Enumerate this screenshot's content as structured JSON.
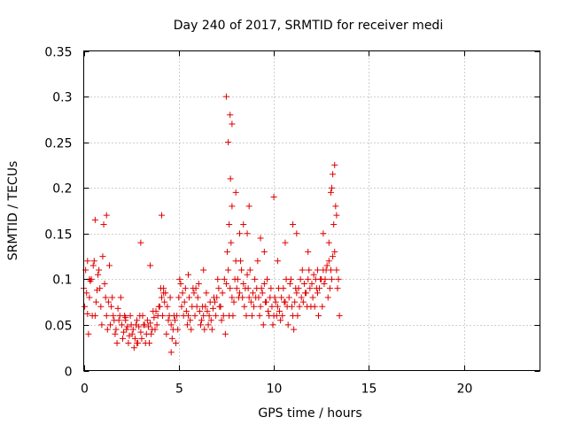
{
  "chart_data": {
    "type": "scatter",
    "title": "Day 240 of 2017, SRMTID for receiver medi",
    "xlabel": "GPS time / hours",
    "ylabel": "SRMTID / TECUs",
    "xlim": [
      0,
      24
    ],
    "ylim": [
      0,
      0.35
    ],
    "xticks": [
      0,
      5,
      10,
      15,
      20
    ],
    "xtick_labels": [
      "0",
      "5",
      "10",
      "15",
      "20"
    ],
    "yticks": [
      0,
      0.05,
      0.1,
      0.15,
      0.2,
      0.25,
      0.3,
      0.35
    ],
    "ytick_labels": [
      "0",
      "0.05",
      "0.1",
      "0.15",
      "0.2",
      "0.25",
      "0.3",
      "0.35"
    ],
    "grid": true,
    "marker": "+",
    "series_color": "#e00000",
    "series": [
      {
        "name": "SRMTID",
        "x": [
          0.0,
          0.1,
          0.2,
          0.3,
          0.4,
          0.5,
          0.6,
          0.7,
          0.8,
          0.9,
          1.0,
          1.1,
          1.2,
          1.3,
          1.4,
          1.5,
          1.6,
          1.7,
          1.8,
          1.9,
          2.0,
          2.1,
          2.2,
          2.3,
          2.4,
          2.5,
          2.6,
          2.7,
          2.8,
          2.9,
          3.0,
          3.1,
          3.2,
          3.3,
          3.4,
          3.5,
          3.6,
          3.7,
          3.8,
          3.9,
          4.0,
          4.1,
          4.2,
          4.3,
          4.4,
          4.5,
          4.6,
          4.7,
          4.8,
          4.9,
          5.0,
          5.1,
          5.2,
          5.3,
          5.4,
          5.5,
          5.6,
          5.7,
          5.8,
          5.9,
          6.0,
          6.1,
          6.2,
          6.3,
          6.4,
          6.5,
          6.6,
          6.7,
          6.8,
          6.9,
          7.0,
          7.1,
          7.2,
          7.3,
          7.4,
          7.5,
          7.6,
          7.7,
          7.8,
          7.9,
          8.0,
          8.1,
          8.2,
          8.3,
          8.4,
          8.5,
          8.6,
          8.7,
          8.8,
          8.9,
          9.0,
          9.1,
          9.2,
          9.3,
          9.4,
          9.5,
          9.6,
          9.7,
          9.8,
          9.9,
          10.0,
          10.1,
          10.2,
          10.3,
          10.4,
          10.5,
          10.6,
          10.7,
          10.8,
          10.9,
          11.0,
          11.1,
          11.2,
          11.3,
          11.4,
          11.5,
          11.6,
          11.7,
          11.8,
          11.9,
          12.0,
          12.1,
          12.2,
          12.3,
          12.4,
          12.5,
          12.6,
          12.7,
          12.8,
          12.9,
          13.0,
          13.1,
          13.2,
          13.3,
          13.4,
          0.05,
          0.15,
          0.25,
          0.35,
          0.45,
          0.55,
          0.65,
          0.75,
          0.85,
          0.95,
          1.05,
          1.15,
          1.25,
          1.35,
          1.45,
          1.55,
          1.65,
          1.75,
          1.85,
          1.95,
          2.05,
          2.15,
          2.25,
          2.35,
          2.45,
          2.55,
          2.65,
          2.75,
          2.85,
          2.95,
          3.05,
          3.15,
          3.25,
          3.35,
          3.45,
          3.55,
          3.65,
          3.75,
          3.85,
          3.95,
          4.05,
          4.15,
          4.25,
          4.35,
          4.45,
          4.55,
          4.65,
          4.75,
          4.85,
          4.95,
          5.05,
          5.15,
          5.25,
          5.35,
          5.45,
          5.55,
          5.65,
          5.75,
          5.85,
          5.95,
          6.05,
          6.15,
          6.25,
          6.35,
          6.45,
          6.55,
          6.65,
          6.75,
          6.85,
          6.95,
          7.05,
          7.15,
          7.25,
          7.35,
          7.45,
          7.55,
          7.65,
          7.75,
          7.85,
          7.95,
          8.05,
          8.15,
          8.25,
          8.35,
          8.45,
          8.55,
          8.65,
          8.75,
          8.85,
          8.95,
          9.05,
          9.15,
          9.25,
          9.35,
          9.45,
          9.55,
          9.65,
          9.75,
          9.85,
          9.95,
          10.05,
          10.15,
          10.25,
          10.35,
          10.45,
          10.55,
          10.65,
          10.75,
          10.85,
          10.95,
          11.05,
          11.15,
          11.25,
          11.35,
          11.45,
          11.55,
          11.65,
          11.75,
          11.85,
          11.95,
          12.05,
          12.15,
          12.25,
          12.35,
          12.45,
          12.55,
          12.65,
          12.75,
          12.85,
          12.95,
          13.05,
          13.15,
          13.25,
          13.35,
          13.45,
          0.2,
          0.6,
          1.2,
          2.2,
          3.0,
          4.1,
          4.2,
          4.6,
          7.5,
          7.6,
          7.7,
          7.8,
          8.0,
          8.4,
          8.7,
          9.3,
          10.0,
          10.6,
          11.2,
          12.6,
          13.0,
          13.1,
          13.2,
          13.3,
          0.3,
          2.8,
          3.5,
          5.5,
          6.3,
          7.65,
          7.72,
          7.8,
          8.2,
          8.6,
          9.5,
          10.2,
          11.0,
          11.8,
          12.3,
          12.9,
          13.05
        ],
        "y": [
          0.09,
          0.11,
          0.062,
          0.08,
          0.1,
          0.115,
          0.06,
          0.088,
          0.11,
          0.07,
          0.125,
          0.095,
          0.06,
          0.075,
          0.05,
          0.08,
          0.055,
          0.045,
          0.068,
          0.06,
          0.05,
          0.042,
          0.058,
          0.048,
          0.038,
          0.05,
          0.045,
          0.035,
          0.055,
          0.048,
          0.042,
          0.06,
          0.05,
          0.04,
          0.048,
          0.052,
          0.045,
          0.058,
          0.065,
          0.06,
          0.07,
          0.08,
          0.09,
          0.085,
          0.07,
          0.06,
          0.05,
          0.045,
          0.055,
          0.06,
          0.08,
          0.095,
          0.085,
          0.075,
          0.065,
          0.06,
          0.055,
          0.07,
          0.085,
          0.09,
          0.08,
          0.065,
          0.055,
          0.06,
          0.07,
          0.065,
          0.06,
          0.055,
          0.068,
          0.075,
          0.08,
          0.09,
          0.07,
          0.085,
          0.1,
          0.095,
          0.11,
          0.09,
          0.08,
          0.075,
          0.12,
          0.1,
          0.085,
          0.11,
          0.095,
          0.09,
          0.105,
          0.08,
          0.075,
          0.085,
          0.1,
          0.09,
          0.08,
          0.07,
          0.085,
          0.095,
          0.075,
          0.065,
          0.08,
          0.07,
          0.06,
          0.075,
          0.07,
          0.065,
          0.08,
          0.09,
          0.075,
          0.07,
          0.08,
          0.1,
          0.06,
          0.075,
          0.085,
          0.09,
          0.1,
          0.11,
          0.095,
          0.085,
          0.1,
          0.09,
          0.095,
          0.105,
          0.1,
          0.085,
          0.09,
          0.1,
          0.11,
          0.1,
          0.115,
          0.12,
          0.11,
          0.125,
          0.13,
          0.11,
          0.1,
          0.07,
          0.085,
          0.04,
          0.098,
          0.06,
          0.12,
          0.075,
          0.105,
          0.09,
          0.05,
          0.16,
          0.08,
          0.045,
          0.115,
          0.07,
          0.06,
          0.04,
          0.03,
          0.055,
          0.08,
          0.035,
          0.06,
          0.045,
          0.03,
          0.06,
          0.04,
          0.025,
          0.05,
          0.03,
          0.06,
          0.035,
          0.05,
          0.03,
          0.055,
          0.03,
          0.04,
          0.065,
          0.045,
          0.05,
          0.07,
          0.09,
          0.06,
          0.075,
          0.04,
          0.055,
          0.08,
          0.035,
          0.06,
          0.03,
          0.045,
          0.1,
          0.07,
          0.06,
          0.09,
          0.05,
          0.08,
          0.045,
          0.09,
          0.06,
          0.07,
          0.095,
          0.05,
          0.07,
          0.045,
          0.085,
          0.05,
          0.075,
          0.045,
          0.08,
          0.06,
          0.1,
          0.07,
          0.055,
          0.06,
          0.04,
          0.13,
          0.06,
          0.14,
          0.06,
          0.1,
          0.09,
          0.08,
          0.12,
          0.08,
          0.07,
          0.06,
          0.09,
          0.11,
          0.06,
          0.07,
          0.08,
          0.12,
          0.06,
          0.09,
          0.05,
          0.075,
          0.1,
          0.06,
          0.09,
          0.05,
          0.08,
          0.06,
          0.09,
          0.055,
          0.06,
          0.075,
          0.1,
          0.05,
          0.095,
          0.07,
          0.045,
          0.09,
          0.06,
          0.07,
          0.08,
          0.075,
          0.085,
          0.07,
          0.11,
          0.07,
          0.08,
          0.07,
          0.09,
          0.06,
          0.1,
          0.07,
          0.095,
          0.11,
          0.08,
          0.09,
          0.1,
          0.16,
          0.18,
          0.09,
          0.06,
          0.12,
          0.165,
          0.17,
          0.055,
          0.14,
          0.17,
          0.085,
          0.02,
          0.3,
          0.25,
          0.28,
          0.18,
          0.195,
          0.16,
          0.18,
          0.145,
          0.19,
          0.14,
          0.15,
          0.15,
          0.195,
          0.215,
          0.225,
          0.17,
          0.1,
          0.03,
          0.115,
          0.105,
          0.11,
          0.16,
          0.21,
          0.27,
          0.15,
          0.15,
          0.13,
          0.12,
          0.16,
          0.13,
          0.11,
          0.14,
          0.2
        ]
      }
    ]
  }
}
